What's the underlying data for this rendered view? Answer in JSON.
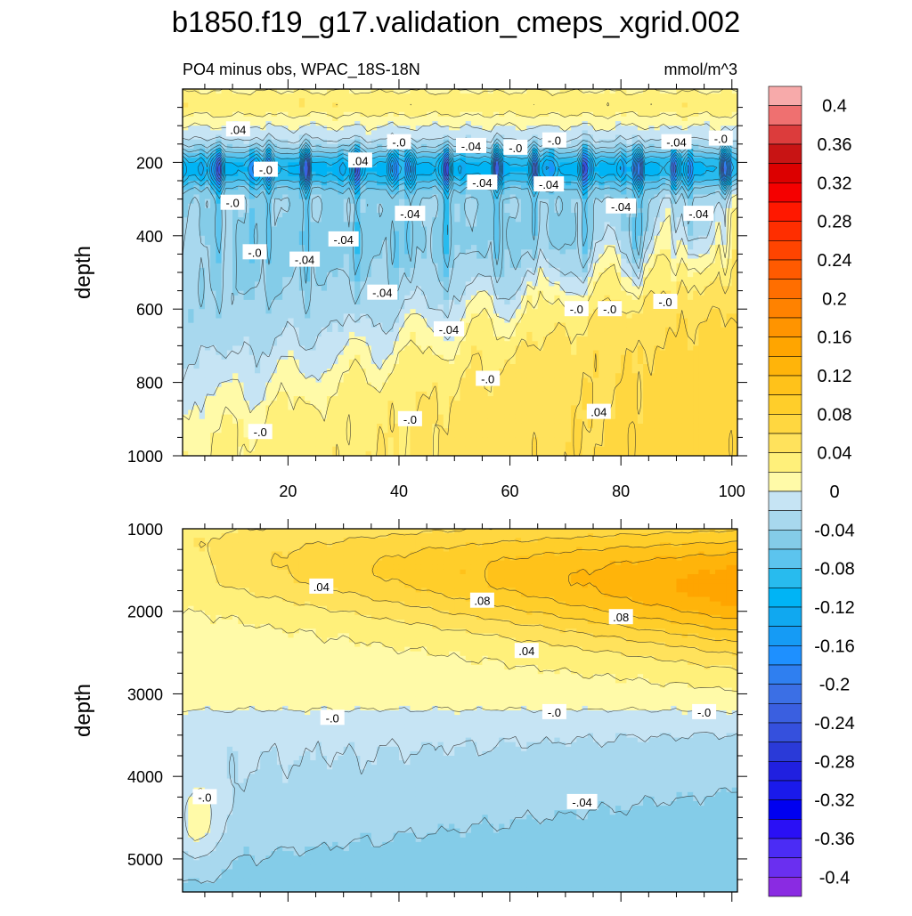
{
  "chart_data": {
    "type": "heatmap",
    "title": "b1850.f19_g17.validation_cmeps_xgrid.002",
    "subtitle_left": "PO4 minus obs, WPAC_18S-18N",
    "subtitle_right": "mmol/m^3",
    "colorbar": {
      "levels": [
        -0.42,
        -0.4,
        -0.38,
        -0.36,
        -0.34,
        -0.32,
        -0.3,
        -0.28,
        -0.26,
        -0.24,
        -0.22,
        -0.2,
        -0.18,
        -0.16,
        -0.14,
        -0.12,
        -0.1,
        -0.08,
        -0.06,
        -0.04,
        -0.02,
        0,
        0.02,
        0.04,
        0.06,
        0.08,
        0.1,
        0.12,
        0.14,
        0.16,
        0.18,
        0.2,
        0.22,
        0.24,
        0.26,
        0.28,
        0.3,
        0.32,
        0.34,
        0.36,
        0.38,
        0.4,
        0.42
      ],
      "colors": [
        "#8a2be2",
        "#6a2ff0",
        "#4b2cf5",
        "#2a10f5",
        "#0000f0",
        "#1a1aeb",
        "#2020e0",
        "#2a3ad8",
        "#3550dd",
        "#3a5fe0",
        "#3b6fe5",
        "#2f7ff0",
        "#1e90ff",
        "#159bf5",
        "#10a8f0",
        "#00b4f5",
        "#28bbee",
        "#5cc4ee",
        "#84cce8",
        "#a8d8ee",
        "#c6e4f4",
        "#fffaa8",
        "#fff07a",
        "#ffe25c",
        "#ffd740",
        "#ffce2a",
        "#ffc21a",
        "#ffb40a",
        "#ffa500",
        "#ff9400",
        "#ff8200",
        "#ff6e00",
        "#ff5a00",
        "#ff4400",
        "#ff2e00",
        "#ff1800",
        "#f50000",
        "#dc0000",
        "#c81414",
        "#dc3c3c",
        "#ef7070",
        "#f7aaaa"
      ],
      "tick_labels": [
        "-0.4",
        "-0.36",
        "-0.32",
        "-0.28",
        "-0.24",
        "-0.2",
        "-0.16",
        "-0.12",
        "-0.08",
        "-0.04",
        "0",
        "0.04",
        "0.08",
        "0.12",
        "0.16",
        "0.2",
        "0.24",
        "0.28",
        "0.32",
        "0.36",
        "0.4"
      ],
      "tick_values": [
        -0.4,
        -0.36,
        -0.32,
        -0.28,
        -0.24,
        -0.2,
        -0.16,
        -0.12,
        -0.08,
        -0.04,
        0,
        0.04,
        0.08,
        0.12,
        0.16,
        0.2,
        0.24,
        0.28,
        0.32,
        0.36,
        0.4
      ]
    },
    "panels": [
      {
        "name": "upper",
        "ylabel": "depth",
        "ylim": [
          0,
          1000
        ],
        "yticks": [
          200,
          400,
          600,
          800,
          1000
        ],
        "xlim": [
          1,
          101
        ],
        "xticks": [
          20,
          40,
          60,
          80,
          100
        ],
        "xtick_labels": [
          "20",
          "40",
          "60",
          "80",
          "100"
        ],
        "show_x_labels": true,
        "contour_labels": [
          {
            "text": ".04",
            "x": 11,
            "y": 110
          },
          {
            "text": "-.0",
            "x": 40,
            "y": 145
          },
          {
            "text": "-.04",
            "x": 53,
            "y": 155
          },
          {
            "text": "-.0",
            "x": 61,
            "y": 160
          },
          {
            "text": "-.0",
            "x": 68,
            "y": 140
          },
          {
            "text": "-.04",
            "x": 90,
            "y": 145
          },
          {
            "text": "-.0",
            "x": 98,
            "y": 135
          },
          {
            "text": "-.0",
            "x": 16,
            "y": 220
          },
          {
            "text": ".04",
            "x": 33,
            "y": 195
          },
          {
            "text": "-.04",
            "x": 55,
            "y": 255
          },
          {
            "text": "-.04",
            "x": 67,
            "y": 260
          },
          {
            "text": "-.0",
            "x": 10,
            "y": 310
          },
          {
            "text": "-.04",
            "x": 42,
            "y": 340
          },
          {
            "text": "-.04",
            "x": 80,
            "y": 320
          },
          {
            "text": "-.04",
            "x": 94,
            "y": 340
          },
          {
            "text": "-.04",
            "x": 30,
            "y": 410
          },
          {
            "text": "-.0",
            "x": 14,
            "y": 445
          },
          {
            "text": "-.04",
            "x": 23,
            "y": 465
          },
          {
            "text": "-.04",
            "x": 37,
            "y": 555
          },
          {
            "text": "-.0",
            "x": 88,
            "y": 580
          },
          {
            "text": "-.0",
            "x": 72,
            "y": 600
          },
          {
            "text": "-.0",
            "x": 78,
            "y": 600
          },
          {
            "text": "-.04",
            "x": 49,
            "y": 655
          },
          {
            "text": "-.0",
            "x": 56,
            "y": 790
          },
          {
            "text": ".04",
            "x": 76,
            "y": 880
          },
          {
            "text": "-.0",
            "x": 42,
            "y": 900
          },
          {
            "text": "-.0",
            "x": 15,
            "y": 935
          }
        ]
      },
      {
        "name": "lower",
        "ylabel": "depth",
        "ylim": [
          1000,
          5400
        ],
        "yticks": [
          1000,
          2000,
          3000,
          4000,
          5000
        ],
        "xlim": [
          1,
          101
        ],
        "xticks": [
          20,
          40,
          60,
          80,
          100
        ],
        "xtick_labels": [],
        "show_x_labels": false,
        "contour_labels": [
          {
            "text": ".04",
            "x": 26,
            "y": 1700
          },
          {
            "text": ".08",
            "x": 55,
            "y": 1870
          },
          {
            "text": ".08",
            "x": 80,
            "y": 2070
          },
          {
            "text": ".04",
            "x": 63,
            "y": 2480
          },
          {
            "text": "-.0",
            "x": 28,
            "y": 3290
          },
          {
            "text": "-.0",
            "x": 68,
            "y": 3220
          },
          {
            "text": "-.0",
            "x": 95,
            "y": 3220
          },
          {
            "text": "-.0",
            "x": 5,
            "y": 4250
          },
          {
            "text": "-.04",
            "x": 73,
            "y": 4310
          }
        ]
      }
    ]
  }
}
